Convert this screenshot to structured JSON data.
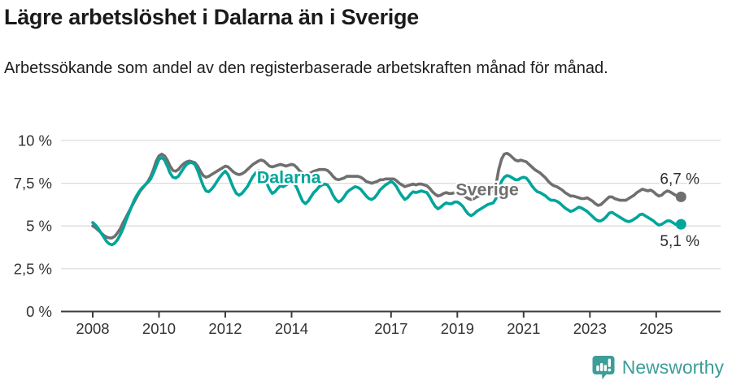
{
  "header": {
    "title": "Lägre arbetslöshet i Dalarna än i Sverige",
    "subtitle": "Arbetssökande som andel av den registerbaserade arbetskraften månad för månad."
  },
  "footer": {
    "brand": "Newsworthy",
    "logo_icon": "newsworthy-speech-bubble-bar-chart-icon"
  },
  "colors": {
    "dalarna": "#00a59b",
    "sverige": "#6f6f6f",
    "grid": "#dcdcdc",
    "axis": "#3b3b3b",
    "tick_text": "#333333",
    "value_label": "#2d2d2d",
    "brand": "#3d9d98"
  },
  "chart_data": {
    "type": "line",
    "title": "Lägre arbetslöshet i Dalarna än i Sverige",
    "subtitle": "Arbetssökande som andel av den registerbaserade arbetskraften månad för månad.",
    "unit": "%",
    "frequency": "monthly",
    "x_start": "2008-01",
    "x_end": "2025-10",
    "ylim": [
      0,
      10
    ],
    "grid": true,
    "yticks": [
      10,
      7.5,
      5,
      2.5,
      0
    ],
    "ytick_labels": [
      "10 %",
      "7,5 %",
      "5 %",
      "2,5 %",
      "0 %"
    ],
    "xticks": [
      2008,
      2010,
      2012,
      2014,
      2017,
      2019,
      2021,
      2023,
      2025
    ],
    "annotations": [
      {
        "text": "Dalarna",
        "year": 2012.95,
        "value": 7.5,
        "color": "#00a59b"
      },
      {
        "text": "Sverige",
        "year": 2018.95,
        "value": 6.8,
        "color": "#6f6f6f"
      }
    ],
    "series": [
      {
        "name": "Sverige",
        "color": "#6f6f6f",
        "end_label": "6,7 %",
        "end_value": 6.7,
        "values": [
          5.0,
          4.9,
          4.75,
          4.6,
          4.45,
          4.35,
          4.3,
          4.3,
          4.4,
          4.6,
          4.85,
          5.2,
          5.5,
          5.8,
          6.1,
          6.4,
          6.7,
          7.0,
          7.2,
          7.4,
          7.6,
          7.9,
          8.3,
          8.8,
          9.1,
          9.2,
          9.1,
          8.85,
          8.5,
          8.25,
          8.2,
          8.3,
          8.5,
          8.65,
          8.75,
          8.8,
          8.75,
          8.7,
          8.5,
          8.2,
          7.95,
          7.85,
          7.9,
          8.0,
          8.1,
          8.2,
          8.3,
          8.4,
          8.5,
          8.45,
          8.3,
          8.15,
          8.05,
          8.0,
          8.05,
          8.15,
          8.3,
          8.45,
          8.6,
          8.7,
          8.8,
          8.85,
          8.8,
          8.65,
          8.5,
          8.45,
          8.5,
          8.55,
          8.6,
          8.55,
          8.5,
          8.55,
          8.6,
          8.55,
          8.4,
          8.2,
          8.1,
          8.0,
          8.05,
          8.1,
          8.2,
          8.25,
          8.3,
          8.3,
          8.3,
          8.25,
          8.1,
          7.9,
          7.75,
          7.7,
          7.75,
          7.8,
          7.9,
          7.9,
          7.9,
          7.9,
          7.9,
          7.85,
          7.75,
          7.6,
          7.55,
          7.5,
          7.55,
          7.6,
          7.7,
          7.7,
          7.75,
          7.75,
          7.75,
          7.75,
          7.65,
          7.5,
          7.4,
          7.3,
          7.35,
          7.4,
          7.45,
          7.4,
          7.45,
          7.45,
          7.4,
          7.35,
          7.2,
          7.0,
          6.85,
          6.75,
          6.8,
          6.9,
          6.95,
          6.9,
          6.9,
          6.95,
          6.95,
          6.9,
          6.8,
          6.7,
          6.6,
          6.55,
          6.6,
          6.7,
          6.75,
          6.8,
          6.85,
          6.95,
          7.0,
          7.1,
          7.4,
          8.3,
          8.9,
          9.2,
          9.25,
          9.15,
          9.0,
          8.85,
          8.8,
          8.85,
          8.8,
          8.75,
          8.6,
          8.45,
          8.3,
          8.2,
          8.1,
          7.95,
          7.8,
          7.6,
          7.45,
          7.35,
          7.3,
          7.2,
          7.1,
          6.95,
          6.85,
          6.75,
          6.75,
          6.7,
          6.65,
          6.6,
          6.6,
          6.65,
          6.55,
          6.45,
          6.3,
          6.2,
          6.25,
          6.4,
          6.55,
          6.7,
          6.7,
          6.6,
          6.55,
          6.5,
          6.5,
          6.5,
          6.6,
          6.7,
          6.8,
          6.95,
          7.05,
          7.15,
          7.1,
          7.05,
          7.1,
          7.0,
          6.85,
          6.75,
          6.8,
          6.95,
          7.05,
          7.0,
          6.9,
          6.8,
          6.75,
          6.7
        ]
      },
      {
        "name": "Dalarna",
        "color": "#00a59b",
        "end_label": "5,1 %",
        "end_value": 5.1,
        "values": [
          5.2,
          5.05,
          4.85,
          4.6,
          4.35,
          4.1,
          3.95,
          3.9,
          4.0,
          4.2,
          4.5,
          4.85,
          5.3,
          5.7,
          6.1,
          6.5,
          6.8,
          7.05,
          7.25,
          7.4,
          7.55,
          7.75,
          8.1,
          8.5,
          8.9,
          9.0,
          8.85,
          8.5,
          8.1,
          7.85,
          7.8,
          7.9,
          8.15,
          8.4,
          8.6,
          8.7,
          8.7,
          8.6,
          8.25,
          7.8,
          7.35,
          7.05,
          7.0,
          7.15,
          7.35,
          7.6,
          7.85,
          8.05,
          8.2,
          8.0,
          7.6,
          7.2,
          6.9,
          6.8,
          6.9,
          7.1,
          7.3,
          7.6,
          7.9,
          8.1,
          8.25,
          8.2,
          7.9,
          7.5,
          7.15,
          6.9,
          7.0,
          7.2,
          7.35,
          7.3,
          7.4,
          7.5,
          7.6,
          7.5,
          7.2,
          6.8,
          6.45,
          6.3,
          6.45,
          6.7,
          6.95,
          7.1,
          7.3,
          7.4,
          7.45,
          7.4,
          7.15,
          6.8,
          6.55,
          6.4,
          6.5,
          6.7,
          6.95,
          7.1,
          7.2,
          7.3,
          7.25,
          7.15,
          6.95,
          6.75,
          6.6,
          6.55,
          6.65,
          6.85,
          7.1,
          7.25,
          7.4,
          7.5,
          7.6,
          7.5,
          7.3,
          7.0,
          6.75,
          6.55,
          6.65,
          6.85,
          7.0,
          6.95,
          7.0,
          7.05,
          7.0,
          6.95,
          6.7,
          6.4,
          6.15,
          6.0,
          6.1,
          6.25,
          6.35,
          6.3,
          6.3,
          6.4,
          6.4,
          6.3,
          6.15,
          5.9,
          5.7,
          5.6,
          5.7,
          5.85,
          5.95,
          6.05,
          6.15,
          6.25,
          6.3,
          6.35,
          6.6,
          7.2,
          7.6,
          7.85,
          7.95,
          7.9,
          7.8,
          7.7,
          7.7,
          7.8,
          7.85,
          7.8,
          7.6,
          7.35,
          7.15,
          7.0,
          6.95,
          6.85,
          6.75,
          6.6,
          6.5,
          6.5,
          6.45,
          6.35,
          6.2,
          6.05,
          5.95,
          5.85,
          5.9,
          6.0,
          6.1,
          6.05,
          5.95,
          5.85,
          5.7,
          5.55,
          5.4,
          5.3,
          5.3,
          5.4,
          5.55,
          5.75,
          5.8,
          5.7,
          5.6,
          5.5,
          5.4,
          5.3,
          5.25,
          5.3,
          5.4,
          5.5,
          5.65,
          5.7,
          5.6,
          5.5,
          5.4,
          5.3,
          5.15,
          5.05,
          5.1,
          5.2,
          5.3,
          5.3,
          5.2,
          5.1,
          5.05,
          5.1
        ]
      }
    ]
  }
}
